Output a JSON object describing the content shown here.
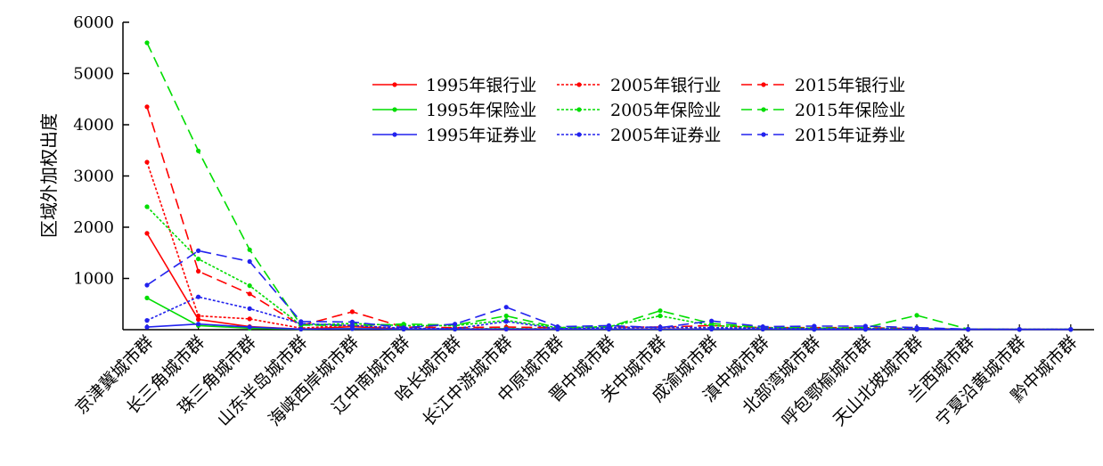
{
  "chart_data": {
    "type": "line",
    "title": "",
    "xlabel": "",
    "ylabel": "区域外加权出度",
    "ylim": [
      0,
      6000
    ],
    "yticks": [
      "0",
      "1000",
      "2000",
      "3000",
      "4000",
      "5000",
      "6000"
    ],
    "grid": false,
    "legend_position": "top-center",
    "categories": [
      "京津冀城市群",
      "长三角城市群",
      "珠三角城市群",
      "山东半岛城市群",
      "海峡西岸城市群",
      "辽中南城市群",
      "哈长城市群",
      "长江中游城市群",
      "中原城市群",
      "晋中城市群",
      "关中城市群",
      "成渝城市群",
      "滇中城市群",
      "北部湾城市群",
      "呼包鄂榆城市群",
      "天山北坡城市群",
      "兰西城市群",
      "宁夏沿黄城市群",
      "黔中城市群"
    ],
    "series": [
      {
        "name": "1995年银行业",
        "color": "#ff0000",
        "dash": "solid",
        "values": [
          1880,
          200,
          60,
          10,
          60,
          10,
          10,
          10,
          10,
          10,
          10,
          10,
          10,
          10,
          10,
          5,
          5,
          5,
          5
        ]
      },
      {
        "name": "2005年银行业",
        "color": "#ff0000",
        "dash": "dotted",
        "values": [
          3270,
          270,
          210,
          30,
          90,
          20,
          20,
          20,
          20,
          20,
          20,
          20,
          20,
          20,
          20,
          10,
          5,
          5,
          5
        ]
      },
      {
        "name": "2015年银行业",
        "color": "#ff0000",
        "dash": "dashed",
        "values": [
          4350,
          1140,
          700,
          80,
          350,
          50,
          40,
          50,
          40,
          50,
          50,
          80,
          40,
          40,
          40,
          20,
          10,
          5,
          5
        ]
      },
      {
        "name": "1995年保险业",
        "color": "#00dd00",
        "dash": "solid",
        "values": [
          620,
          80,
          30,
          10,
          20,
          10,
          10,
          20,
          10,
          10,
          10,
          10,
          10,
          5,
          5,
          5,
          5,
          5,
          5
        ]
      },
      {
        "name": "2005年保险业",
        "color": "#00dd00",
        "dash": "dotted",
        "values": [
          2400,
          1380,
          860,
          90,
          120,
          80,
          80,
          180,
          40,
          60,
          270,
          80,
          40,
          30,
          30,
          20,
          10,
          5,
          5
        ]
      },
      {
        "name": "2015年保险业",
        "color": "#00dd00",
        "dash": "dashed",
        "values": [
          5600,
          3490,
          1560,
          90,
          80,
          110,
          90,
          270,
          40,
          50,
          370,
          120,
          50,
          30,
          40,
          280,
          10,
          5,
          5
        ]
      },
      {
        "name": "1995年证券业",
        "color": "#2222ee",
        "dash": "solid",
        "values": [
          50,
          110,
          50,
          10,
          20,
          10,
          10,
          10,
          10,
          10,
          10,
          10,
          10,
          5,
          5,
          5,
          5,
          5,
          5
        ]
      },
      {
        "name": "2005年证券业",
        "color": "#2222ee",
        "dash": "dotted",
        "values": [
          180,
          640,
          410,
          120,
          80,
          30,
          20,
          160,
          20,
          40,
          50,
          40,
          30,
          20,
          20,
          10,
          5,
          5,
          5
        ]
      },
      {
        "name": "2015年证券业",
        "color": "#2222ee",
        "dash": "dashed",
        "values": [
          870,
          1540,
          1330,
          160,
          150,
          40,
          110,
          440,
          60,
          80,
          40,
          170,
          60,
          70,
          70,
          40,
          10,
          5,
          5
        ]
      }
    ]
  }
}
